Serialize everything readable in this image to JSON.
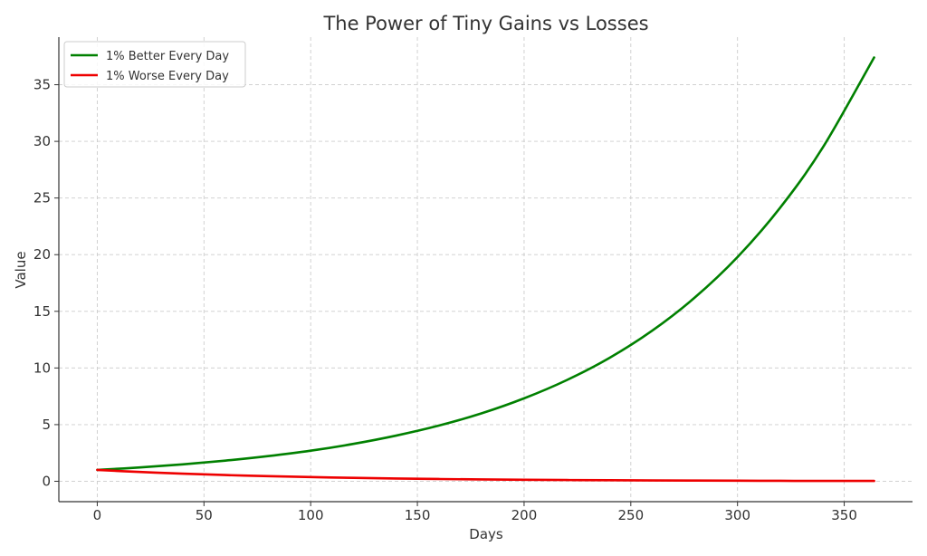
{
  "chart_data": {
    "type": "line",
    "title": "The Power of Tiny Gains vs Losses",
    "xlabel": "Days",
    "ylabel": "Value",
    "xlim": [
      -18,
      382
    ],
    "ylim": [
      -1.8,
      39.2
    ],
    "xticks": [
      0,
      50,
      100,
      150,
      200,
      250,
      300,
      350
    ],
    "yticks": [
      0,
      5,
      10,
      15,
      20,
      25,
      30,
      35
    ],
    "grid": true,
    "legend_position": "top-left",
    "series": [
      {
        "name": "1% Better Every Day",
        "color": "#008000",
        "x": [
          0,
          20,
          40,
          60,
          80,
          100,
          120,
          140,
          160,
          180,
          200,
          220,
          240,
          260,
          280,
          300,
          320,
          340,
          364
        ],
        "y": [
          1.0,
          1.22,
          1.49,
          1.82,
          2.22,
          2.7,
          3.3,
          4.03,
          4.91,
          5.99,
          7.32,
          8.93,
          10.89,
          13.29,
          16.22,
          19.79,
          24.15,
          29.47,
          37.4
        ]
      },
      {
        "name": "1% Worse Every Day",
        "color": "#ee0000",
        "x": [
          0,
          20,
          40,
          60,
          80,
          100,
          120,
          140,
          160,
          180,
          200,
          220,
          240,
          260,
          280,
          300,
          320,
          340,
          364
        ],
        "y": [
          1.0,
          0.82,
          0.67,
          0.55,
          0.45,
          0.37,
          0.3,
          0.24,
          0.2,
          0.16,
          0.13,
          0.11,
          0.09,
          0.07,
          0.06,
          0.05,
          0.04,
          0.03,
          0.03
        ]
      }
    ]
  }
}
